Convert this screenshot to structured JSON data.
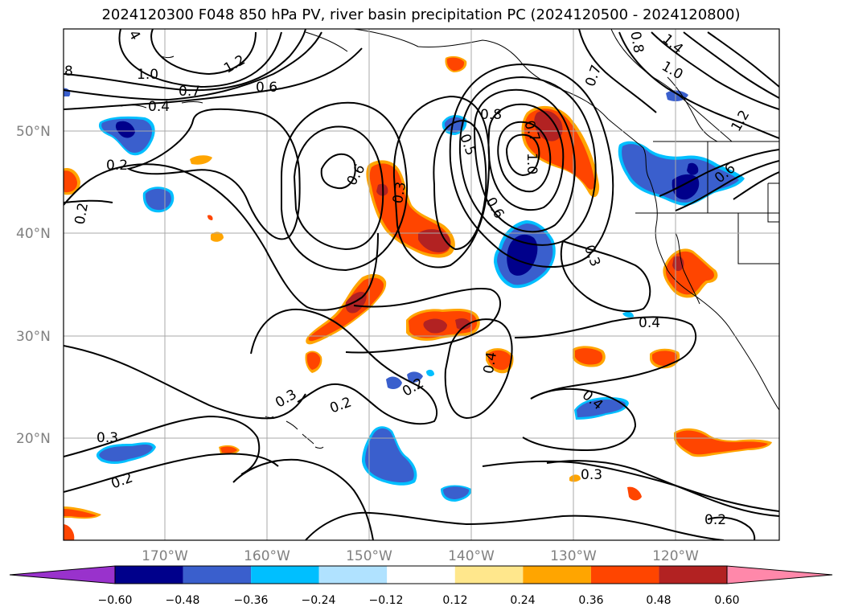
{
  "title": "2024120300 F048 850 hPa PV, river basin precipitation PC (2024120500 - 2024120800)",
  "lat_ticks": [
    "50°N",
    "40°N",
    "30°N",
    "20°N"
  ],
  "lon_ticks": [
    "170°W",
    "160°W",
    "150°W",
    "140°W",
    "130°W",
    "120°W"
  ],
  "colorbar": {
    "tick_labels": [
      "−0.60",
      "−0.48",
      "−0.36",
      "−0.24",
      "−0.12",
      "0.12",
      "0.24",
      "0.36",
      "0.48",
      "0.60"
    ],
    "colors": [
      "#9932cc",
      "#00008b",
      "#3a5fcd",
      "#00bfff",
      "#b0e2ff",
      "#ffffff",
      "#ffe78c",
      "#ffa500",
      "#ff4500",
      "#b22222",
      "#ff88aa"
    ]
  },
  "contour_labels": [
    "4",
    "8",
    "1.0",
    "1.2",
    "0.7",
    "0.6",
    "0.4",
    "0.2",
    "0.2",
    "0.6",
    "0.3",
    "0.5",
    "0.8",
    "0.6",
    "1.0",
    "0.3",
    "0.7",
    "0.8",
    "1.4",
    "1.0",
    "1.2",
    "0.6",
    "0.7",
    "0.4",
    "0.4",
    "0.3",
    "0.2",
    "0.2",
    "0.4",
    "0.3",
    "0.2",
    "0.3",
    "0.2"
  ],
  "fill_colors": {
    "orange_edge": "#ffa500",
    "red_orange": "#ff4500",
    "dark_red": "#b22222",
    "blue": "#3a5fcd",
    "navy": "#00008b",
    "cyan_edge": "#00bfff",
    "yellow_edge": "#ffe78c"
  }
}
